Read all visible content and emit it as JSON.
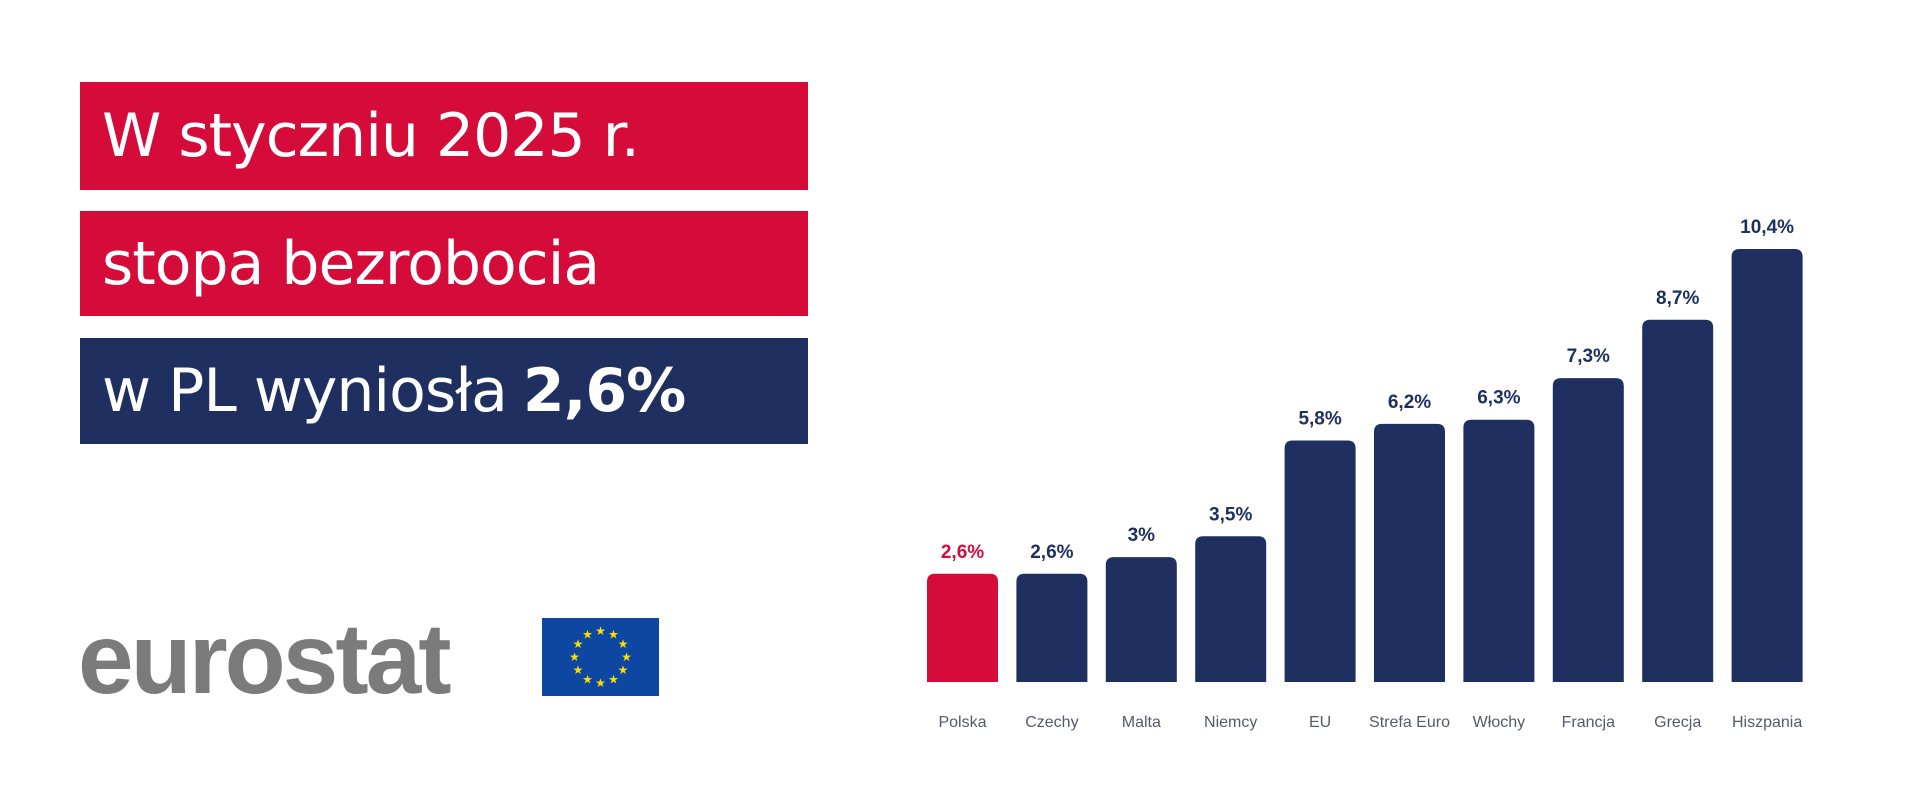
{
  "headline": {
    "line1": "W styczniu 2025 r.",
    "line2": "stopa bezrobocia",
    "line3_prefix": "w PL wyniosła",
    "line3_value": "2,6%"
  },
  "logo": {
    "text": "eurostat"
  },
  "colors": {
    "highlight": "#d50c3a",
    "bar": "#1f3060",
    "label": "#555a66"
  },
  "chart_data": {
    "type": "bar",
    "title": "",
    "xlabel": "",
    "ylabel": "",
    "ylim": [
      0,
      10.4
    ],
    "grid": false,
    "categories": [
      "Polska",
      "Czechy",
      "Malta",
      "Niemcy",
      "EU",
      "Strefa Euro",
      "Włochy",
      "Francja",
      "Grecja",
      "Hiszpania"
    ],
    "values": [
      2.6,
      2.6,
      3,
      3.5,
      5.8,
      6.2,
      6.3,
      7.3,
      8.7,
      10.4
    ],
    "value_labels": [
      "2,6%",
      "2,6%",
      "3%",
      "3,5%",
      "5,8%",
      "6,2%",
      "6,3%",
      "7,3%",
      "8,7%",
      "10,4%"
    ],
    "highlight_index": 0
  }
}
